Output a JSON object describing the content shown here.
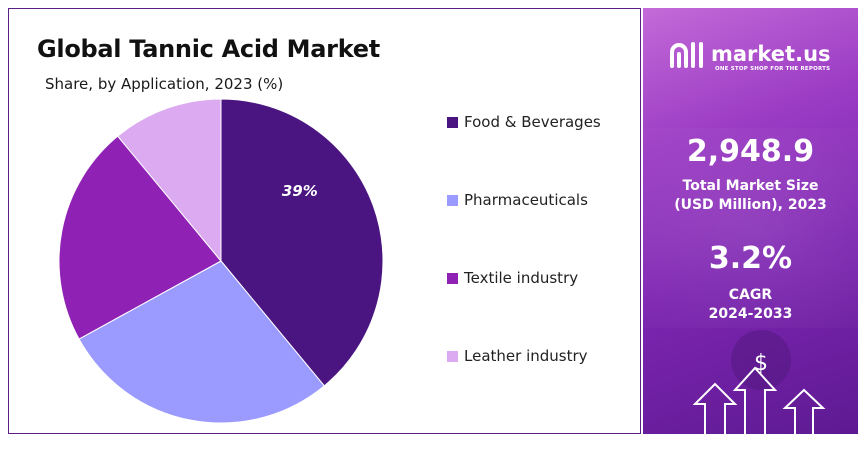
{
  "chart_data": {
    "type": "pie",
    "title": "Global Tannic Acid Market",
    "subtitle": "Share, by Application, 2023 (%)",
    "categories": [
      "Food & Beverages",
      "Pharmaceuticals",
      "Textile industry",
      "Leather industry"
    ],
    "values": [
      39,
      28,
      22,
      11
    ],
    "colors": [
      "#4a1580",
      "#9a9aff",
      "#8f22b4",
      "#dcaaf0"
    ],
    "data_labels": [
      "39%",
      "",
      "",
      ""
    ],
    "legend_position": "right"
  },
  "brand": {
    "name": "market.us",
    "tagline": "ONE STOP SHOP FOR THE REPORTS"
  },
  "stats": {
    "market_size_value": "2,948.9",
    "market_size_label_1": "Total Market Size",
    "market_size_label_2": "(USD Million), 2023",
    "cagr_value": "3.2%",
    "cagr_label_1": "CAGR",
    "cagr_label_2": "2024-2033"
  },
  "icons": [
    "dollar-icon",
    "arrow-up-icon"
  ]
}
